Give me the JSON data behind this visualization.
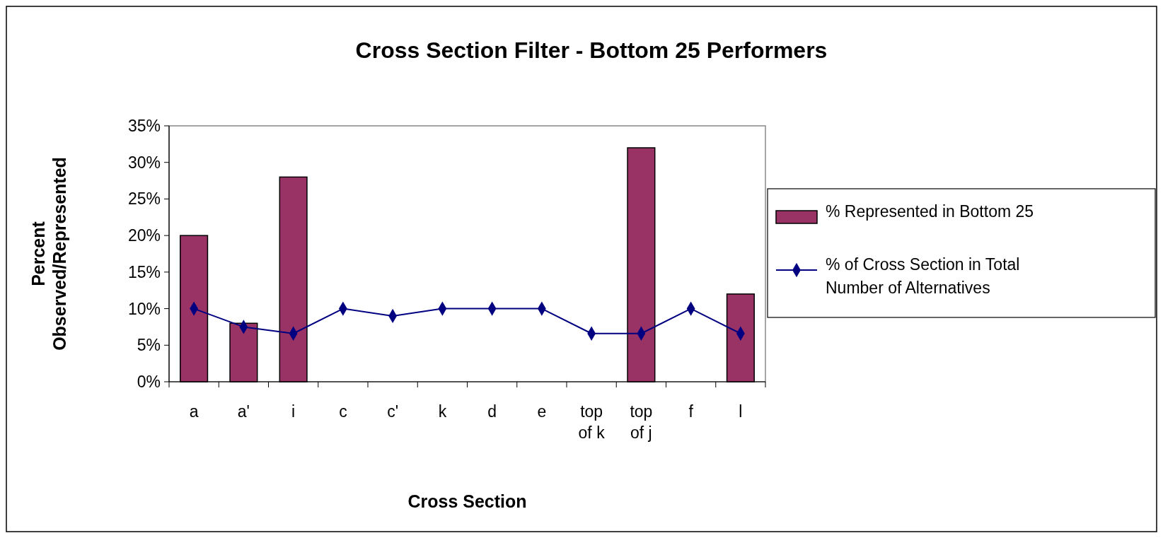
{
  "chart_data": {
    "type": "bar",
    "title": "Cross Section Filter - Bottom 25 Performers",
    "xlabel": "Cross Section",
    "ylabel": "Percent Observed/Represented",
    "categories": [
      "a",
      "a'",
      "i",
      "c",
      "c'",
      "k",
      "d",
      "e",
      "top of k",
      "top of j",
      "f",
      "l"
    ],
    "series": [
      {
        "name": "% Represented in Bottom 25",
        "color": "#993366",
        "values": [
          20,
          8,
          28,
          null,
          null,
          null,
          null,
          null,
          null,
          32,
          null,
          12
        ]
      },
      {
        "name": "% of Cross Section in Total Number of Alternatives",
        "type": "line",
        "color": "#000080",
        "marker": "diamond",
        "values": [
          10,
          7.5,
          6.6,
          10,
          9,
          10,
          10,
          10,
          6.6,
          6.6,
          10,
          6.6
        ]
      }
    ],
    "ylim": [
      0,
      35
    ],
    "yticks": [
      {
        "value": 0,
        "label": "0%"
      },
      {
        "value": 5,
        "label": "5%"
      },
      {
        "value": 10,
        "label": "10%"
      },
      {
        "value": 15,
        "label": "15%"
      },
      {
        "value": 20,
        "label": "20%"
      },
      {
        "value": 25,
        "label": "25%"
      },
      {
        "value": 30,
        "label": "30%"
      },
      {
        "value": 35,
        "label": "35%"
      }
    ],
    "grid": false,
    "legend": "right"
  }
}
